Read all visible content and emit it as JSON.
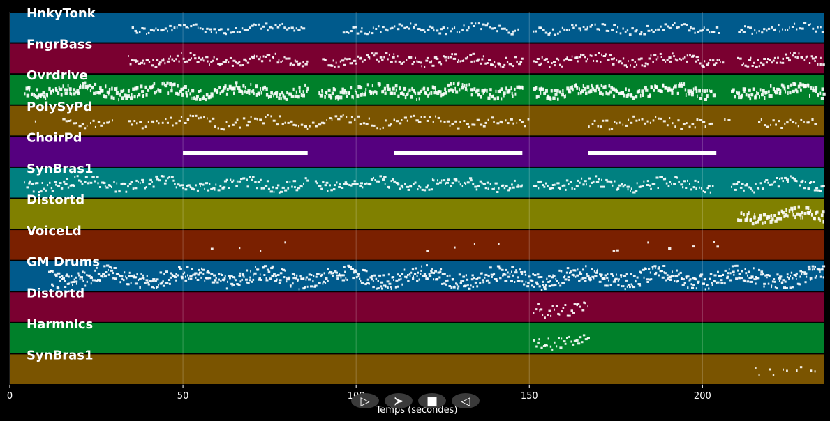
{
  "chart_data": {
    "type": "piano-roll",
    "xlabel": "Temps (secondes)",
    "xlim": [
      0,
      235
    ],
    "x_ticks": [
      0,
      50,
      100,
      150,
      200
    ],
    "grid": true,
    "tracks": [
      {
        "name": "HnkyTonk",
        "color": "#005a8c",
        "note": "#ffffff",
        "segments": [
          [
            35,
            85
          ],
          [
            96,
            147
          ],
          [
            151,
            205
          ],
          [
            210,
            235
          ]
        ],
        "density": 1.2,
        "spread": 0.25,
        "thick": 3
      },
      {
        "name": "FngrBass",
        "color": "#7a0030",
        "note": "#ffffff",
        "segments": [
          [
            34,
            86
          ],
          [
            90,
            148
          ],
          [
            151,
            206
          ],
          [
            210,
            235
          ]
        ],
        "density": 1.6,
        "spread": 0.3,
        "thick": 3
      },
      {
        "name": "Ovrdrive",
        "color": "#00802a",
        "note": "#ffffff",
        "segments": [
          [
            4,
            86
          ],
          [
            89,
            148
          ],
          [
            151,
            203
          ],
          [
            208,
            235
          ]
        ],
        "density": 2.2,
        "spread": 0.35,
        "thick": 5
      },
      {
        "name": "PolySyPd",
        "color": "#7a5400",
        "note": "#ffffff",
        "segments": [
          [
            7,
            8
          ],
          [
            15,
            30
          ],
          [
            34,
            150
          ],
          [
            167,
            203
          ],
          [
            206,
            208
          ],
          [
            216,
            233
          ]
        ],
        "density": 1.0,
        "spread": 0.3,
        "thick": 3
      },
      {
        "name": "ChoirPd",
        "color": "#55007f",
        "note": "#ffffff",
        "segments": [
          [
            50,
            86
          ],
          [
            111,
            148
          ],
          [
            167,
            204
          ]
        ],
        "density": 0.35,
        "spread": 0.05,
        "thick": 6
      },
      {
        "name": "SynBras1",
        "color": "#008080",
        "note": "#ffffff",
        "segments": [
          [
            4,
            86
          ],
          [
            88,
            148
          ],
          [
            151,
            203
          ],
          [
            208,
            235
          ]
        ],
        "density": 1.6,
        "spread": 0.35,
        "thick": 3
      },
      {
        "name": "Distortd",
        "color": "#808000",
        "note": "#ffffff",
        "segments": [
          [
            210,
            235
          ]
        ],
        "density": 2.2,
        "spread": 0.35,
        "thick": 5
      },
      {
        "name": "VoiceLd",
        "color": "#7a2000",
        "note": "#ffffff",
        "segments": [
          [
            58,
            59
          ],
          [
            66,
            67
          ],
          [
            72,
            73
          ],
          [
            79,
            80
          ],
          [
            120,
            121
          ],
          [
            128,
            129
          ],
          [
            134,
            135
          ],
          [
            141,
            142
          ],
          [
            174,
            176
          ],
          [
            184,
            185
          ],
          [
            190,
            191
          ],
          [
            197,
            198
          ],
          [
            203,
            205
          ]
        ],
        "density": 1.0,
        "spread": 0.3,
        "thick": 3
      },
      {
        "name": "GM Drums",
        "color": "#005a8c",
        "note": "#ffffff",
        "segments": [
          [
            11,
            235
          ]
        ],
        "density": 3.0,
        "spread": 0.5,
        "thick": 3
      },
      {
        "name": "Distortd",
        "color": "#7a0030",
        "note": "#ffffff",
        "segments": [
          [
            151,
            167
          ]
        ],
        "density": 1.5,
        "spread": 0.4,
        "thick": 3
      },
      {
        "name": "Harmnics",
        "color": "#00802a",
        "note": "#ffffff",
        "segments": [
          [
            151,
            167
          ]
        ],
        "density": 1.5,
        "spread": 0.4,
        "thick": 3
      },
      {
        "name": "SynBras1",
        "color": "#7a5400",
        "note": "#ffffff",
        "segments": [
          [
            215,
            217
          ],
          [
            219,
            221
          ],
          [
            223,
            225
          ],
          [
            227,
            229
          ],
          [
            231,
            233
          ]
        ],
        "density": 1.0,
        "spread": 0.3,
        "thick": 3
      }
    ]
  },
  "controls": [
    {
      "icon": "play-icon",
      "glyph": "▷"
    },
    {
      "icon": "fast-forward-icon",
      "glyph": "≻"
    },
    {
      "icon": "stop-icon",
      "glyph": "■"
    },
    {
      "icon": "rewind-icon",
      "glyph": "◁"
    }
  ]
}
